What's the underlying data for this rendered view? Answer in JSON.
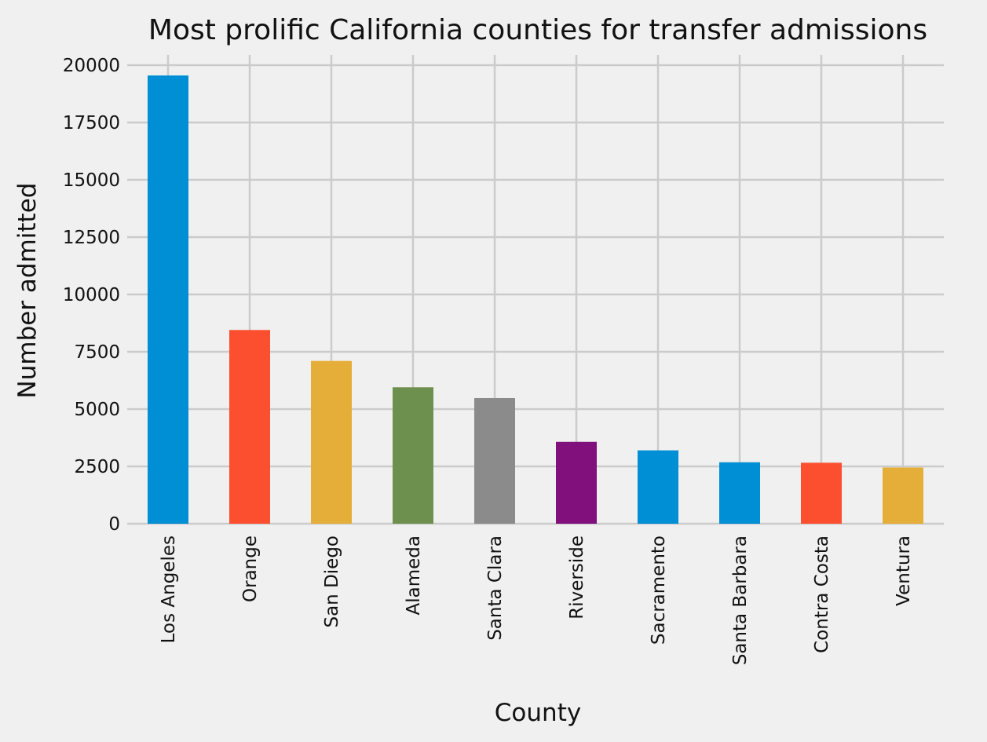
{
  "chart_data": {
    "type": "bar",
    "title": "Most prolific California counties for transfer admissions",
    "xlabel": "County",
    "ylabel": "Number admitted",
    "categories": [
      "Los Angeles",
      "Orange",
      "San Diego",
      "Alameda",
      "Santa Clara",
      "Riverside",
      "Sacramento",
      "Santa Barbara",
      "Contra Costa",
      "Ventura"
    ],
    "values": [
      19550,
      8450,
      7100,
      5950,
      5480,
      3570,
      3200,
      2680,
      2660,
      2450
    ],
    "colors": [
      "#008fd5",
      "#fc4f30",
      "#e5ae38",
      "#6d904f",
      "#8b8b8b",
      "#810f7c",
      "#008fd5",
      "#008fd5",
      "#fc4f30",
      "#e5ae38"
    ],
    "ylim": [
      0,
      20000
    ],
    "yticks": [
      "0",
      "2500",
      "5000",
      "7500",
      "10000",
      "12500",
      "15000",
      "17500",
      "20000"
    ],
    "grid": true,
    "legend": "none"
  }
}
